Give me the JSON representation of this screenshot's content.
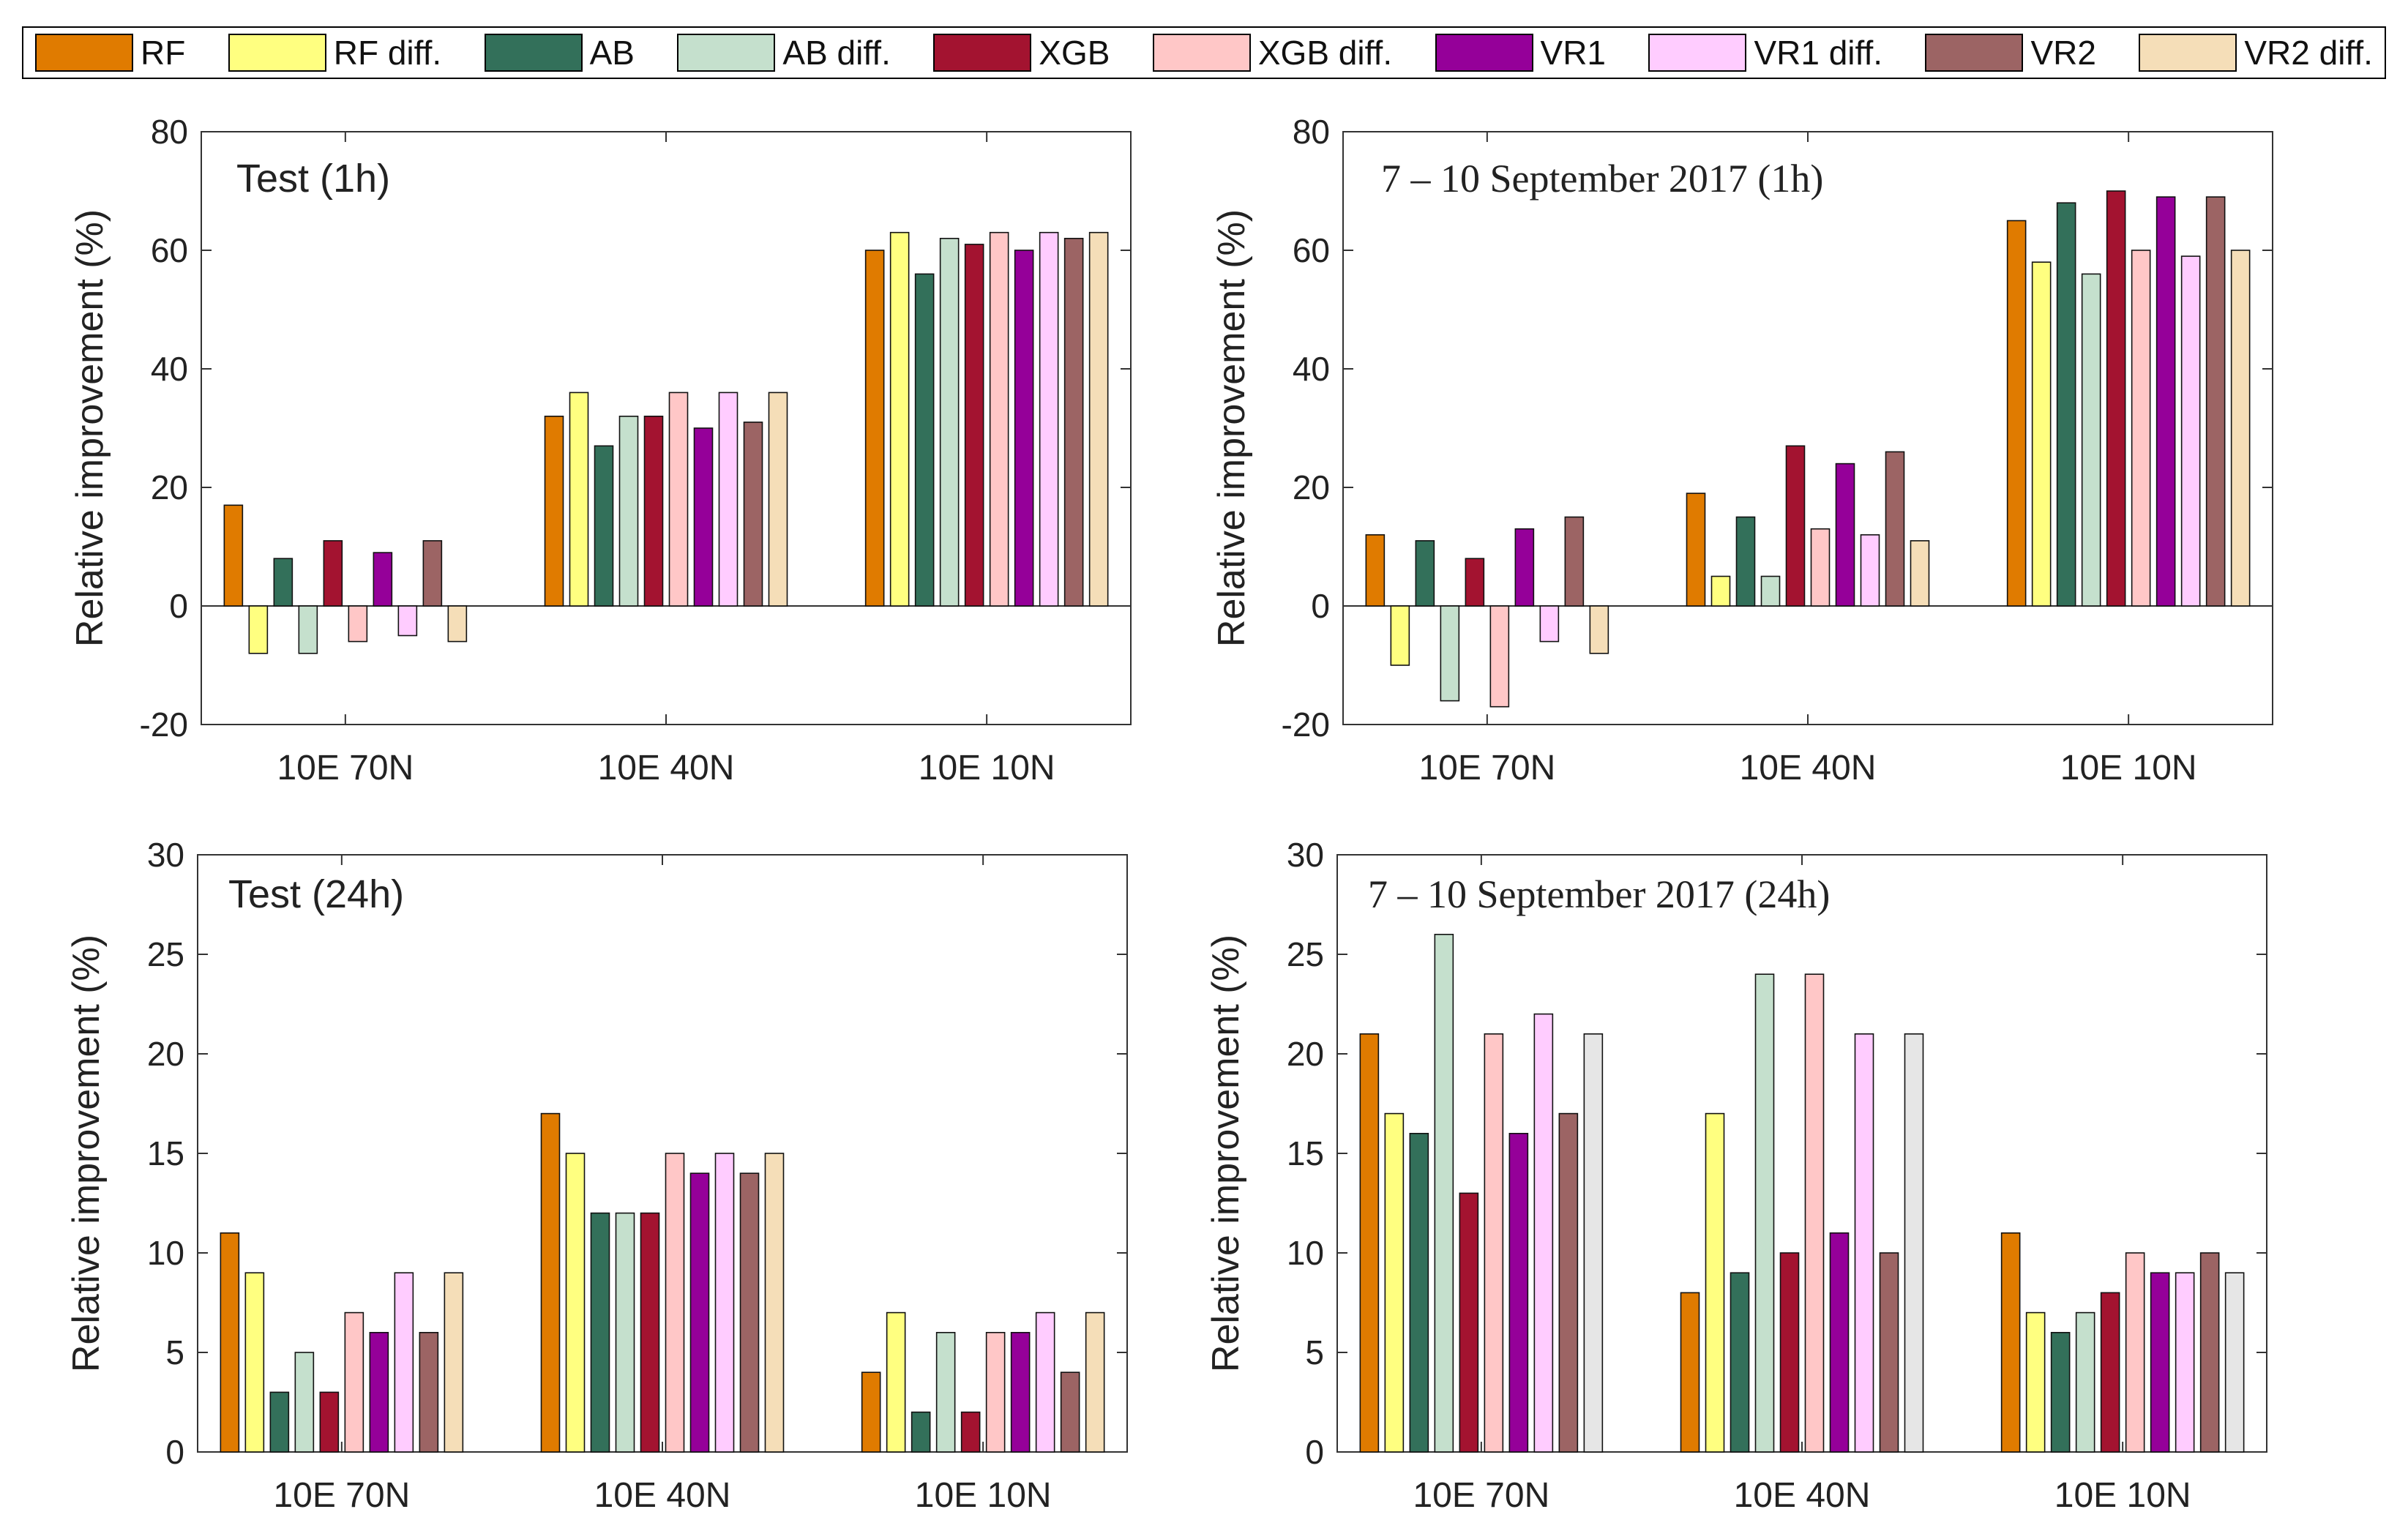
{
  "legend": {
    "items": [
      {
        "label": "RF",
        "color": "#e07b00"
      },
      {
        "label": "RF diff.",
        "color": "#ffff80"
      },
      {
        "label": "AB",
        "color": "#33705a"
      },
      {
        "label": "AB diff.",
        "color": "#c5e0cd"
      },
      {
        "label": "XGB",
        "color": "#a31330"
      },
      {
        "label": "XGB diff.",
        "color": "#ffc7c7"
      },
      {
        "label": "VR1",
        "color": "#950099"
      },
      {
        "label": "VR1 diff.",
        "color": "#ffccff"
      },
      {
        "label": "VR2",
        "color": "#9c6464"
      },
      {
        "label": "VR2 diff.",
        "color": "#f5deb8"
      }
    ]
  },
  "chart_data": [
    {
      "type": "bar",
      "title": "Test (1h)",
      "title_style": "sans",
      "xlabel": "",
      "ylabel": "Relative improvement (%)",
      "ylim": [
        -20,
        80
      ],
      "yticks": [
        -20,
        0,
        20,
        40,
        60,
        80
      ],
      "grid": false,
      "categories": [
        "10E 70N",
        "10E 40N",
        "10E 10N"
      ],
      "series": [
        {
          "name": "RF",
          "values": [
            17,
            32,
            60
          ]
        },
        {
          "name": "RF diff.",
          "values": [
            -8,
            36,
            63
          ]
        },
        {
          "name": "AB",
          "values": [
            8,
            27,
            56
          ]
        },
        {
          "name": "AB diff.",
          "values": [
            -8,
            32,
            62
          ]
        },
        {
          "name": "XGB",
          "values": [
            11,
            32,
            61
          ]
        },
        {
          "name": "XGB diff.",
          "values": [
            -6,
            36,
            63
          ]
        },
        {
          "name": "VR1",
          "values": [
            9,
            30,
            60
          ]
        },
        {
          "name": "VR1 diff.",
          "values": [
            -5,
            36,
            63
          ]
        },
        {
          "name": "VR2",
          "values": [
            11,
            31,
            62
          ]
        },
        {
          "name": "VR2 diff.",
          "values": [
            -6,
            36,
            63
          ]
        }
      ]
    },
    {
      "type": "bar",
      "title": "7 – 10 September 2017 (1h)",
      "title_style": "serif",
      "xlabel": "",
      "ylabel": "Relative improvement (%)",
      "ylim": [
        -20,
        80
      ],
      "yticks": [
        -20,
        0,
        20,
        40,
        60,
        80
      ],
      "grid": false,
      "categories": [
        "10E 70N",
        "10E 40N",
        "10E 10N"
      ],
      "series": [
        {
          "name": "RF",
          "values": [
            12,
            19,
            65
          ]
        },
        {
          "name": "RF diff.",
          "values": [
            -10,
            5,
            58
          ]
        },
        {
          "name": "AB",
          "values": [
            11,
            15,
            68
          ]
        },
        {
          "name": "AB diff.",
          "values": [
            -16,
            5,
            56
          ]
        },
        {
          "name": "XGB",
          "values": [
            8,
            27,
            70
          ]
        },
        {
          "name": "XGB diff.",
          "values": [
            -17,
            13,
            60
          ]
        },
        {
          "name": "VR1",
          "values": [
            13,
            24,
            69
          ]
        },
        {
          "name": "VR1 diff.",
          "values": [
            -6,
            12,
            59
          ]
        },
        {
          "name": "VR2",
          "values": [
            15,
            26,
            69
          ]
        },
        {
          "name": "VR2 diff.",
          "values": [
            -8,
            11,
            60
          ]
        }
      ]
    },
    {
      "type": "bar",
      "title": "Test (24h)",
      "title_style": "sans",
      "xlabel": "",
      "ylabel": "Relative improvement (%)",
      "ylim": [
        0,
        30
      ],
      "yticks": [
        0,
        5,
        10,
        15,
        20,
        25,
        30
      ],
      "grid": false,
      "categories": [
        "10E 70N",
        "10E 40N",
        "10E 10N"
      ],
      "series": [
        {
          "name": "RF",
          "values": [
            11,
            17,
            4
          ]
        },
        {
          "name": "RF diff.",
          "values": [
            9,
            15,
            7
          ]
        },
        {
          "name": "AB",
          "values": [
            3,
            12,
            2
          ]
        },
        {
          "name": "AB diff.",
          "values": [
            5,
            12,
            6
          ]
        },
        {
          "name": "XGB",
          "values": [
            3,
            12,
            2
          ]
        },
        {
          "name": "XGB diff.",
          "values": [
            7,
            15,
            6
          ]
        },
        {
          "name": "VR1",
          "values": [
            6,
            14,
            6
          ]
        },
        {
          "name": "VR1 diff.",
          "values": [
            9,
            15,
            7
          ]
        },
        {
          "name": "VR2",
          "values": [
            6,
            14,
            4
          ]
        },
        {
          "name": "VR2 diff.",
          "values": [
            9,
            15,
            7
          ]
        }
      ]
    },
    {
      "type": "bar",
      "title": "7 – 10 September 2017 (24h)",
      "title_style": "serif",
      "xlabel": "",
      "ylabel": "Relative improvement (%)",
      "ylim": [
        0,
        30
      ],
      "yticks": [
        0,
        5,
        10,
        15,
        20,
        25,
        30
      ],
      "grid": false,
      "categories": [
        "10E 70N",
        "10E 40N",
        "10E 10N"
      ],
      "series": [
        {
          "name": "RF",
          "values": [
            21,
            8,
            11
          ]
        },
        {
          "name": "RF diff.",
          "values": [
            17,
            17,
            7
          ]
        },
        {
          "name": "AB",
          "values": [
            16,
            9,
            6
          ]
        },
        {
          "name": "AB diff.",
          "values": [
            26,
            24,
            7
          ]
        },
        {
          "name": "XGB",
          "values": [
            13,
            10,
            8
          ]
        },
        {
          "name": "XGB diff.",
          "values": [
            21,
            24,
            10
          ]
        },
        {
          "name": "VR1",
          "values": [
            16,
            11,
            9
          ]
        },
        {
          "name": "VR1 diff.",
          "values": [
            22,
            21,
            9
          ]
        },
        {
          "name": "VR2",
          "values": [
            17,
            10,
            10
          ]
        },
        {
          "name": "VR2 diff.",
          "values": [
            21,
            21,
            9
          ]
        }
      ],
      "override_colors": {
        "VR2 diff.": "#e6e6e6"
      }
    }
  ]
}
